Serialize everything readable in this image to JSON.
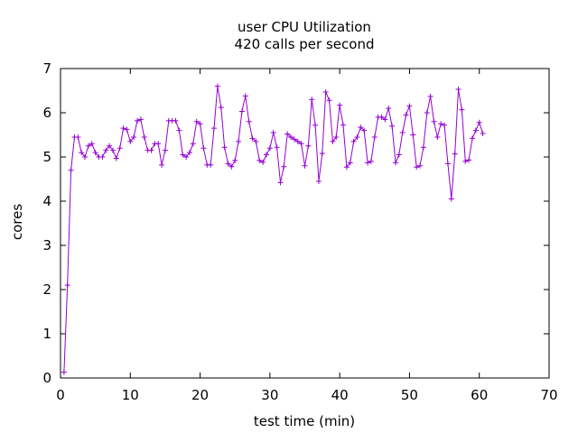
{
  "chart_data": {
    "type": "line",
    "title": "user CPU Utilization",
    "subtitle": "420 calls per second",
    "xlabel": "test time (min)",
    "ylabel": "cores",
    "xlim": [
      0,
      70
    ],
    "ylim": [
      0,
      7
    ],
    "xticks": [
      "0",
      "10",
      "20",
      "30",
      "40",
      "50",
      "60",
      "70"
    ],
    "yticks": [
      "0",
      "1",
      "2",
      "3",
      "4",
      "5",
      "6",
      "7"
    ],
    "grid": false,
    "legend": "none",
    "series_color": "#9400d3",
    "series": [
      {
        "marker": "plus",
        "x": [
          0.5,
          1.0,
          1.5,
          2.0,
          2.5,
          3.0,
          3.5,
          4.0,
          4.5,
          5.0,
          5.5,
          6.0,
          6.5,
          7.0,
          7.5,
          8.0,
          8.5,
          9.0,
          9.5,
          10.0,
          10.5,
          11.0,
          11.5,
          12.0,
          12.5,
          13.0,
          13.5,
          14.0,
          14.5,
          15.0,
          15.5,
          16.0,
          16.5,
          17.0,
          17.5,
          18.0,
          18.5,
          19.0,
          19.5,
          20.0,
          20.5,
          21.0,
          21.5,
          22.0,
          22.5,
          23.0,
          23.5,
          24.0,
          24.5,
          25.0,
          25.5,
          26.0,
          26.5,
          27.0,
          27.5,
          28.0,
          28.5,
          29.0,
          29.5,
          30.0,
          30.5,
          31.0,
          31.5,
          32.0,
          32.5,
          33.0,
          33.5,
          34.0,
          34.5,
          35.0,
          35.5,
          36.0,
          36.5,
          37.0,
          37.5,
          38.0,
          38.5,
          39.0,
          39.5,
          40.0,
          40.5,
          41.0,
          41.5,
          42.0,
          42.5,
          43.0,
          43.5,
          44.0,
          44.5,
          45.0,
          45.5,
          46.0,
          46.5,
          47.0,
          47.5,
          48.0,
          48.5,
          49.0,
          49.5,
          50.0,
          50.5,
          51.0,
          51.5,
          52.0,
          52.5,
          53.0,
          53.5,
          54.0,
          54.5,
          55.0,
          55.5,
          56.0,
          56.5,
          57.0,
          57.5,
          58.0,
          58.5,
          59.0,
          59.5,
          60.0,
          60.5
        ],
        "y": [
          0.13,
          2.1,
          4.7,
          5.45,
          5.45,
          5.1,
          5.0,
          5.25,
          5.3,
          5.1,
          5.0,
          5.0,
          5.15,
          5.25,
          5.15,
          4.97,
          5.2,
          5.65,
          5.62,
          5.35,
          5.45,
          5.82,
          5.85,
          5.45,
          5.15,
          5.15,
          5.3,
          5.3,
          4.82,
          5.15,
          5.82,
          5.82,
          5.82,
          5.6,
          5.05,
          5.0,
          5.1,
          5.3,
          5.8,
          5.75,
          5.2,
          4.82,
          4.82,
          5.65,
          6.6,
          6.12,
          5.22,
          4.85,
          4.78,
          4.92,
          5.35,
          6.03,
          6.38,
          5.8,
          5.42,
          5.35,
          4.92,
          4.88,
          5.05,
          5.2,
          5.55,
          5.22,
          4.42,
          4.78,
          5.52,
          5.45,
          5.4,
          5.35,
          5.3,
          4.8,
          5.25,
          6.3,
          5.72,
          4.45,
          5.08,
          6.47,
          6.28,
          5.35,
          5.45,
          6.17,
          5.72,
          4.77,
          4.87,
          5.35,
          5.45,
          5.67,
          5.6,
          4.87,
          4.9,
          5.45,
          5.9,
          5.9,
          5.85,
          6.1,
          5.7,
          4.87,
          5.05,
          5.55,
          5.95,
          6.15,
          5.5,
          4.77,
          4.8,
          5.22,
          6.0,
          6.37,
          5.8,
          5.45,
          5.75,
          5.72,
          4.85,
          4.05,
          5.07,
          6.53,
          6.07,
          4.9,
          4.93,
          5.42,
          5.6,
          5.78,
          5.53
        ]
      }
    ]
  }
}
